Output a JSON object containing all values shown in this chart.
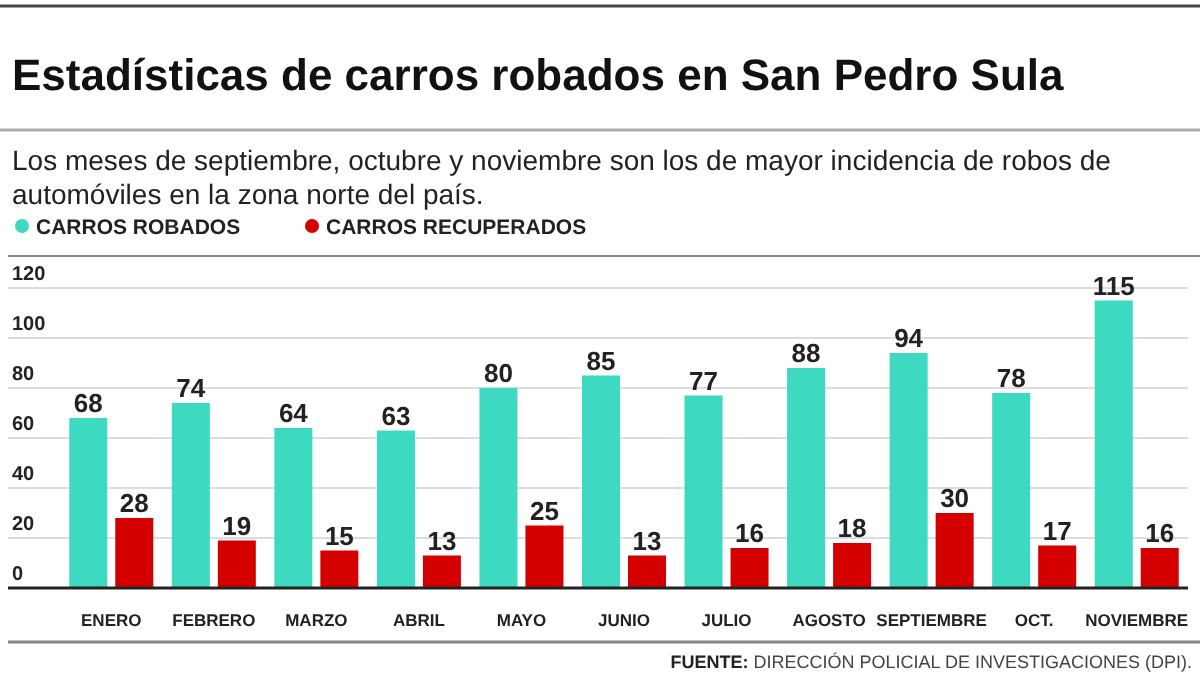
{
  "chart_data": {
    "type": "bar",
    "title": "Estadísticas de carros robados en San Pedro Sula",
    "subtitle": "Los meses de septiembre, octubre y noviembre son los de mayor incidencia de robos de automóviles en la zona norte del país.",
    "categories": [
      "ENERO",
      "FEBRERO",
      "MARZO",
      "ABRIL",
      "MAYO",
      "JUNIO",
      "JULIO",
      "AGOSTO",
      "SEPTIEMBRE",
      "OCT.",
      "NOVIEMBRE"
    ],
    "series": [
      {
        "name": "CARROS ROBADOS",
        "color": "#3dd9c1",
        "values": [
          68,
          74,
          64,
          63,
          80,
          85,
          77,
          88,
          94,
          78,
          115
        ]
      },
      {
        "name": "CARROS RECUPERADOS",
        "color": "#d40000",
        "values": [
          28,
          19,
          15,
          13,
          25,
          13,
          16,
          18,
          30,
          17,
          16
        ]
      }
    ],
    "ylim": [
      0,
      120
    ],
    "yticks": [
      0,
      20,
      40,
      60,
      80,
      100,
      120
    ],
    "grid": "y",
    "legend": "top left",
    "data_labels": true,
    "annotations": [
      "FUENTE: DIRECCIÓN POLICIAL DE INVESTIGACIONES (DPI)."
    ]
  }
}
